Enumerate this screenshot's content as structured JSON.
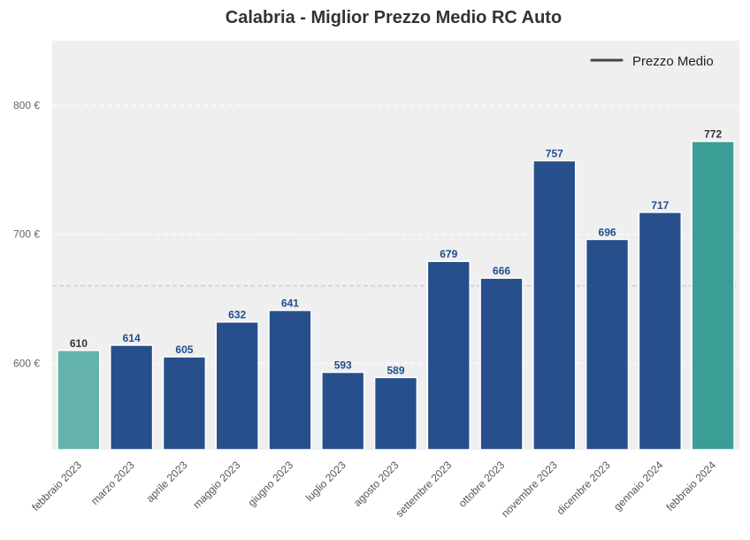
{
  "chart_data": {
    "type": "bar",
    "title": "Calabria - Miglior Prezzo Medio RC Auto",
    "categories": [
      "febbraio 2023",
      "marzo 2023",
      "aprile 2023",
      "maggio 2023",
      "giugno 2023",
      "luglio 2023",
      "agosto 2023",
      "settembre 2023",
      "ottobre 2023",
      "novembre 2023",
      "dicembre 2023",
      "gennaio 2024",
      "febbraio 2024"
    ],
    "values": [
      610,
      614,
      605,
      632,
      641,
      593,
      589,
      679,
      666,
      757,
      696,
      717,
      772
    ],
    "value_labels": [
      "610",
      "614",
      "605",
      "632",
      "641",
      "593",
      "589",
      "679",
      "666",
      "757",
      "696",
      "717",
      "772"
    ],
    "bar_colors": [
      "#64b3ad",
      "#274f8c",
      "#274f8c",
      "#274f8c",
      "#274f8c",
      "#274f8c",
      "#274f8c",
      "#274f8c",
      "#274f8c",
      "#274f8c",
      "#274f8c",
      "#274f8c",
      "#3a9e96"
    ],
    "label_colors": [
      "#333333",
      "#1f4e8f",
      "#1f4e8f",
      "#1f4e8f",
      "#1f4e8f",
      "#1f4e8f",
      "#1f4e8f",
      "#1f4e8f",
      "#1f4e8f",
      "#1f4e8f",
      "#1f4e8f",
      "#1f4e8f",
      "#333333"
    ],
    "ylim": [
      533,
      850
    ],
    "yticks": [
      600,
      700,
      800
    ],
    "ytick_labels": [
      "600 €",
      "700 €",
      "800 €"
    ],
    "average_line": {
      "value": 660,
      "label": "Prezzo Medio"
    },
    "grid": true,
    "legend": {
      "position": "top-right",
      "entries": [
        "Prezzo Medio"
      ]
    },
    "colors": {
      "plot_bg": "#efefef",
      "avg_line": "#c8c8c8",
      "legend_line": "#444444"
    }
  }
}
